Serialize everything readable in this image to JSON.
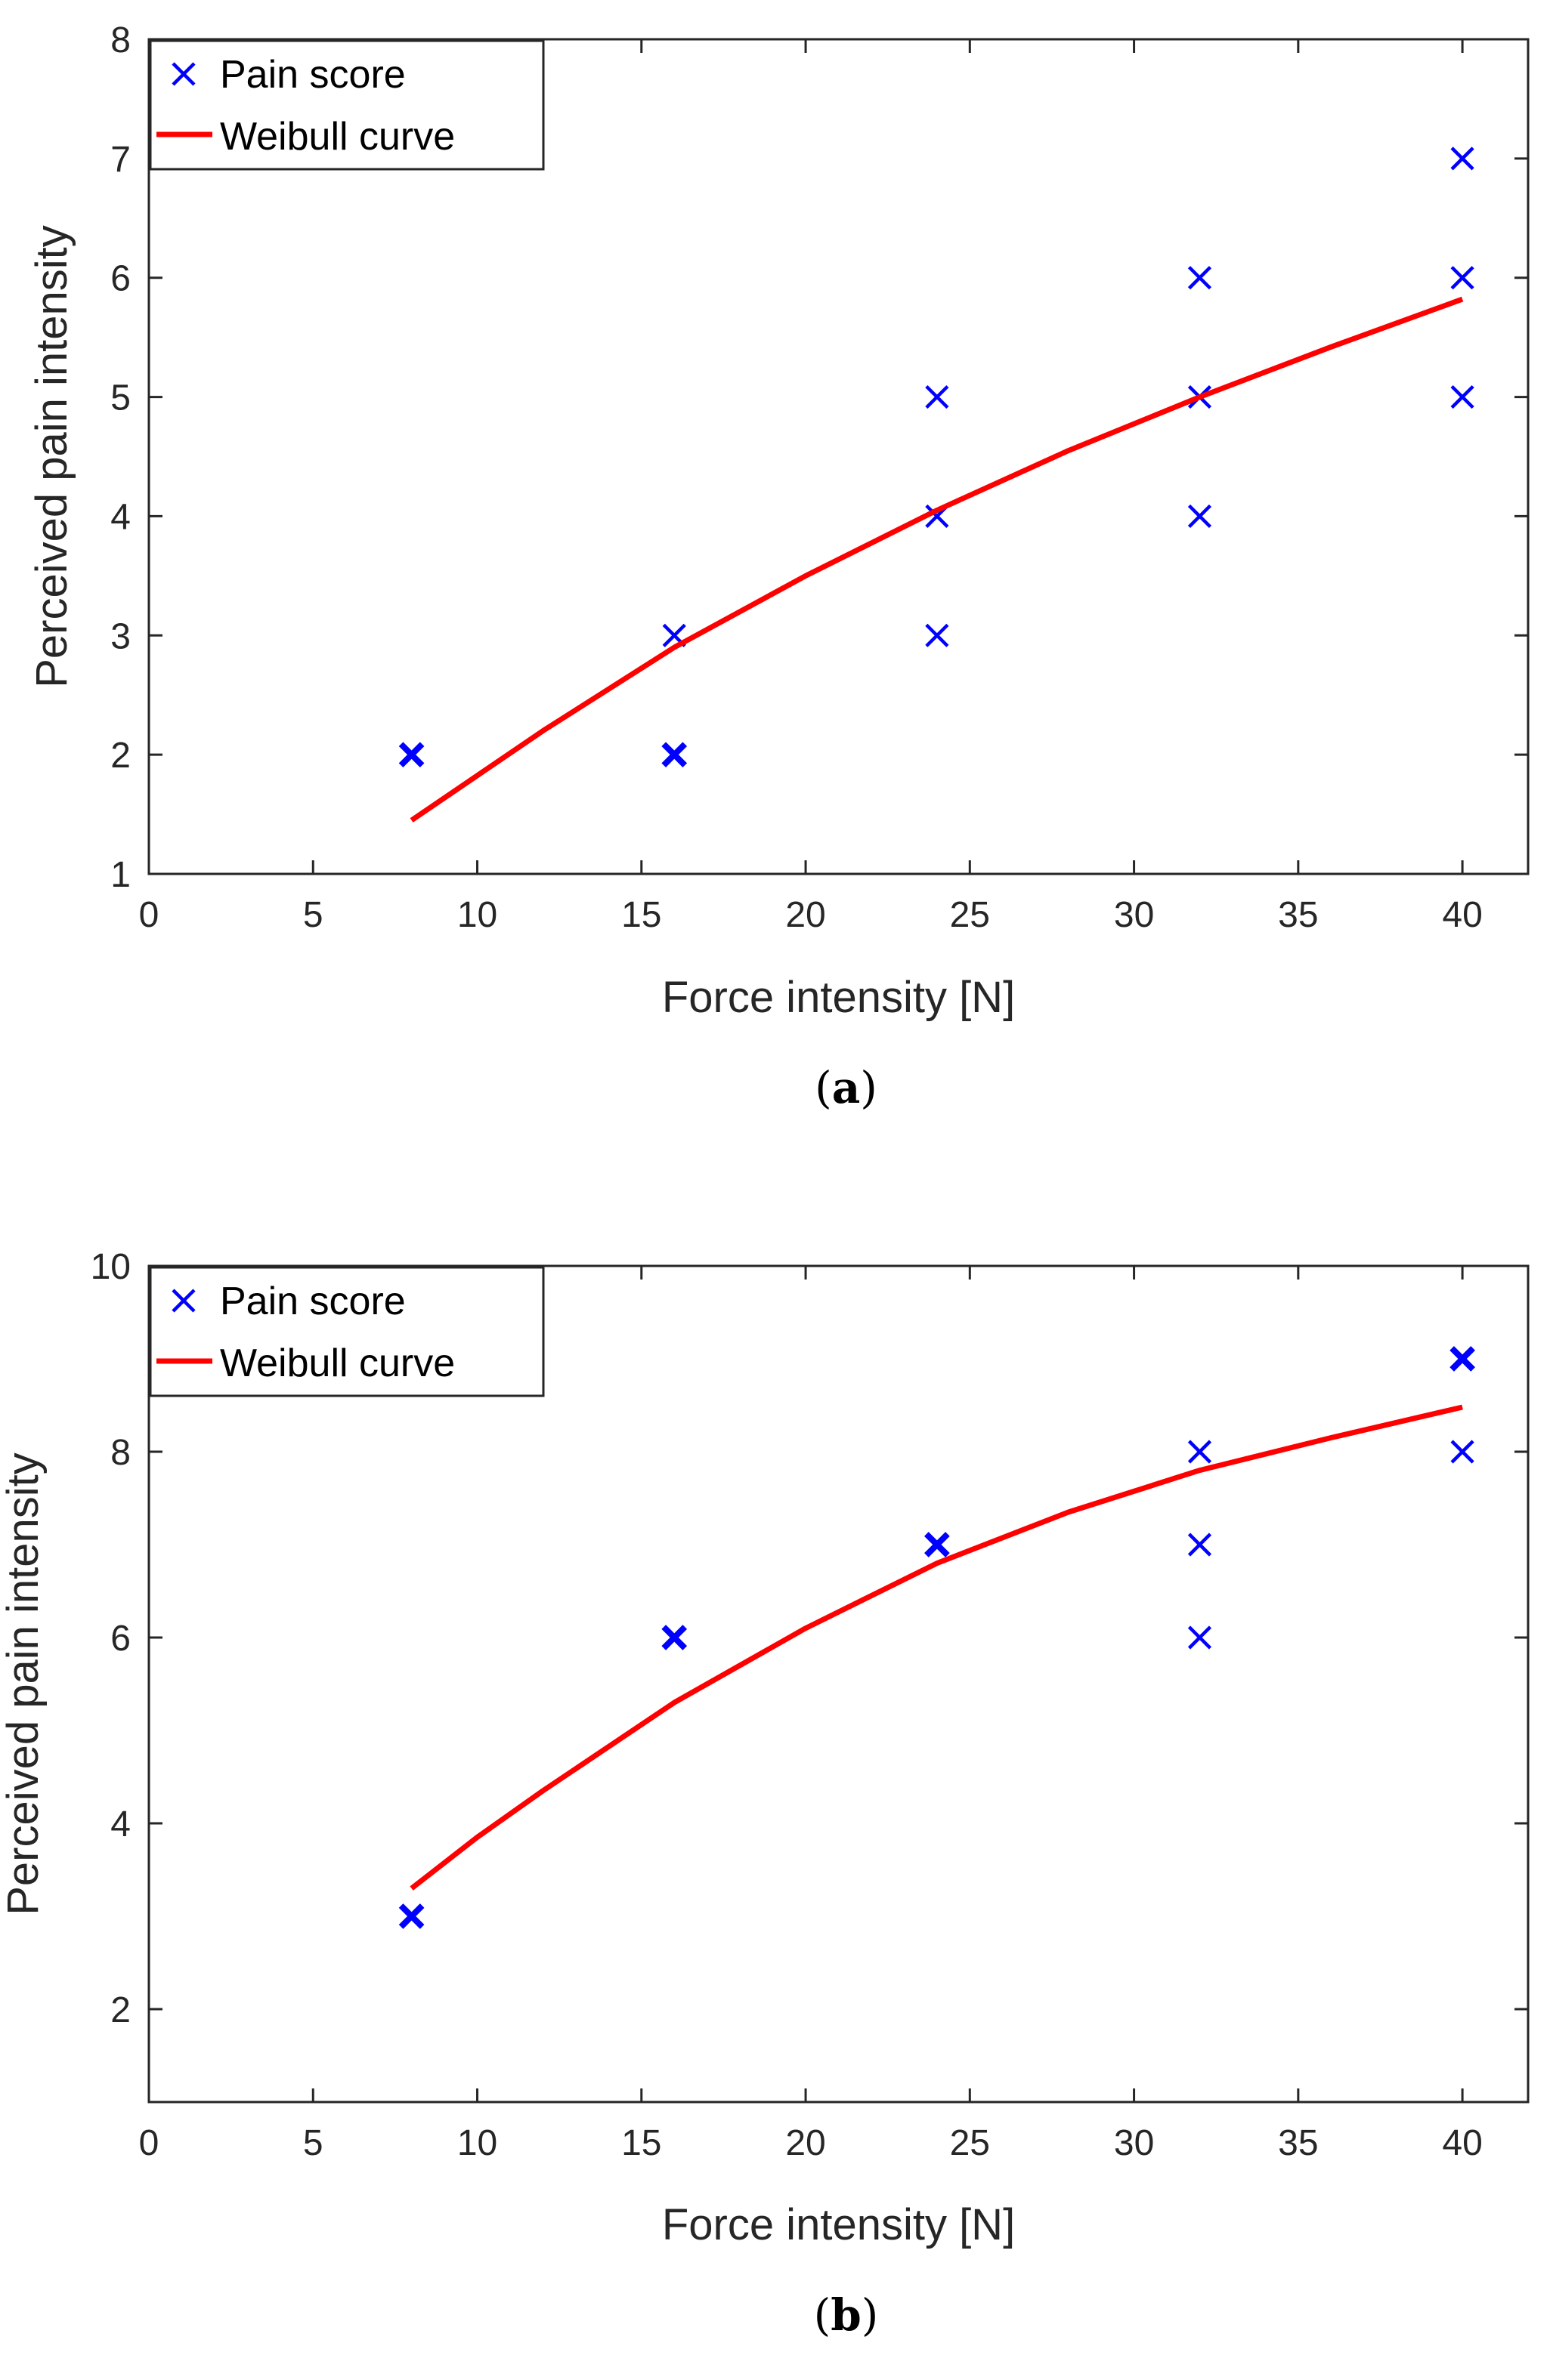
{
  "colors": {
    "marker": "#0000ff",
    "curve": "#ff0000",
    "axis": "#262626",
    "text": "#262626"
  },
  "chart_data": [
    {
      "type": "scatter",
      "panel": "a",
      "panel_label": {
        "open": "(",
        "letter": "a",
        "close": ")"
      },
      "xlabel": "Force intensity [N]",
      "ylabel": "Perceived pain intensity",
      "xlim": [
        0,
        42
      ],
      "ylim": [
        1,
        8
      ],
      "xticks": [
        0,
        5,
        10,
        15,
        20,
        25,
        30,
        35,
        40
      ],
      "yticks": [
        1,
        2,
        3,
        4,
        5,
        6,
        7,
        8
      ],
      "legend": {
        "position": "top-left",
        "entries": [
          "Pain score",
          "Weibull curve"
        ]
      },
      "series": [
        {
          "name": "Pain score",
          "kind": "scatter",
          "marker": "x",
          "points": [
            {
              "x": 8,
              "y": 2,
              "bold": true
            },
            {
              "x": 16,
              "y": 3
            },
            {
              "x": 16,
              "y": 2,
              "bold": true
            },
            {
              "x": 24,
              "y": 5
            },
            {
              "x": 24,
              "y": 4
            },
            {
              "x": 24,
              "y": 3
            },
            {
              "x": 32,
              "y": 6
            },
            {
              "x": 32,
              "y": 5
            },
            {
              "x": 32,
              "y": 4
            },
            {
              "x": 40,
              "y": 7
            },
            {
              "x": 40,
              "y": 6
            },
            {
              "x": 40,
              "y": 5
            }
          ]
        },
        {
          "name": "Weibull curve",
          "kind": "line",
          "x": [
            8,
            12,
            16,
            20,
            24,
            28,
            32,
            36,
            40
          ],
          "y": [
            1.45,
            2.2,
            2.9,
            3.5,
            4.05,
            4.55,
            5.0,
            5.42,
            5.82
          ]
        }
      ]
    },
    {
      "type": "scatter",
      "panel": "b",
      "panel_label": {
        "open": "(",
        "letter": "b",
        "close": ")"
      },
      "xlabel": "Force intensity [N]",
      "ylabel": "Perceived pain intensity",
      "xlim": [
        0,
        42
      ],
      "ylim": [
        1,
        10
      ],
      "xticks": [
        0,
        5,
        10,
        15,
        20,
        25,
        30,
        35,
        40
      ],
      "yticks": [
        2,
        4,
        6,
        8,
        10
      ],
      "legend": {
        "position": "top-left",
        "entries": [
          "Pain score",
          "Weibull curve"
        ]
      },
      "series": [
        {
          "name": "Pain score",
          "kind": "scatter",
          "marker": "x",
          "points": [
            {
              "x": 8,
              "y": 3,
              "bold": true
            },
            {
              "x": 16,
              "y": 6,
              "bold": true
            },
            {
              "x": 24,
              "y": 7,
              "bold": true
            },
            {
              "x": 32,
              "y": 8
            },
            {
              "x": 32,
              "y": 7
            },
            {
              "x": 32,
              "y": 6
            },
            {
              "x": 40,
              "y": 9,
              "bold": true
            },
            {
              "x": 40,
              "y": 8
            }
          ]
        },
        {
          "name": "Weibull curve",
          "kind": "line",
          "x": [
            8,
            10,
            12,
            16,
            20,
            24,
            28,
            32,
            36,
            40
          ],
          "y": [
            3.3,
            3.85,
            4.35,
            5.3,
            6.1,
            6.8,
            7.35,
            7.8,
            8.15,
            8.48
          ]
        }
      ]
    }
  ]
}
